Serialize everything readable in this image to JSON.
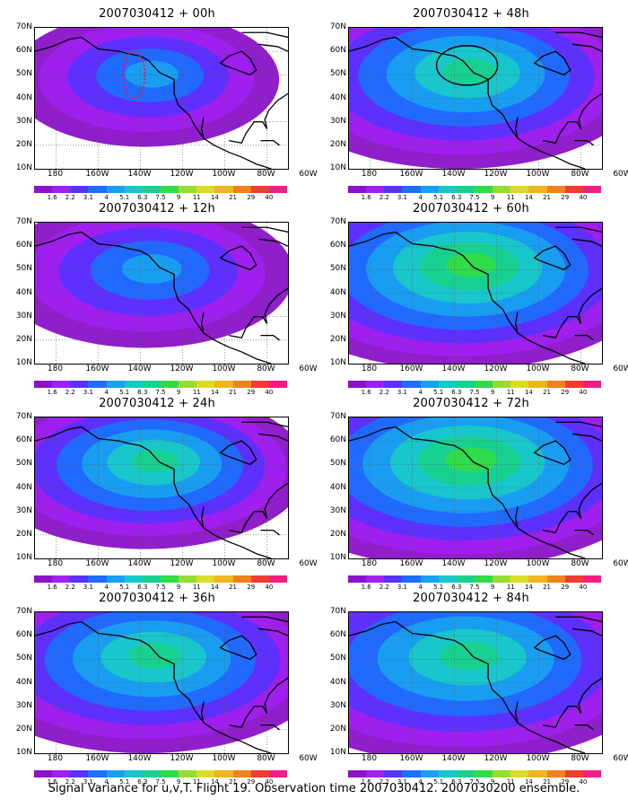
{
  "caption": "Signal Variance for u,v,T. Flight 19. Observation time 2007030412. 2007030200 ensemble.",
  "lat_labels": [
    "70N",
    "60N",
    "50N",
    "40N",
    "30N",
    "20N",
    "10N"
  ],
  "lon_labels": [
    "180",
    "160W",
    "140W",
    "120W",
    "100W",
    "80W",
    "60W"
  ],
  "colorbar": {
    "colors": [
      "#8a12c8",
      "#a020f0",
      "#5a32ff",
      "#1e6eff",
      "#19a0f0",
      "#18c8c8",
      "#18d28c",
      "#32dc46",
      "#96dc32",
      "#dcdc28",
      "#f0b41e",
      "#f0821e",
      "#f03c32",
      "#f01e82"
    ],
    "labels": [
      "1.6",
      "2.2",
      "3.1",
      "4",
      "5.1",
      "6.3",
      "7.5",
      "9",
      "11",
      "14",
      "21",
      "29",
      "40"
    ]
  },
  "panels": [
    {
      "title": "2007030412 + 00h",
      "intensity": 0.25,
      "extent": 0.5,
      "dotted_outline": true
    },
    {
      "title": "2007030412 + 48h",
      "intensity": 0.55,
      "extent": 0.85,
      "circle_outline": true
    },
    {
      "title": "2007030412 + 12h",
      "intensity": 0.35,
      "extent": 0.6
    },
    {
      "title": "2007030412 + 60h",
      "intensity": 0.7,
      "extent": 0.95
    },
    {
      "title": "2007030412 + 24h",
      "intensity": 0.5,
      "extent": 0.7
    },
    {
      "title": "2007030412 + 72h",
      "intensity": 0.72,
      "extent": 1.0
    },
    {
      "title": "2007030412 + 36h",
      "intensity": 0.55,
      "extent": 0.85
    },
    {
      "title": "2007030412 + 84h",
      "intensity": 0.6,
      "extent": 1.0
    }
  ]
}
